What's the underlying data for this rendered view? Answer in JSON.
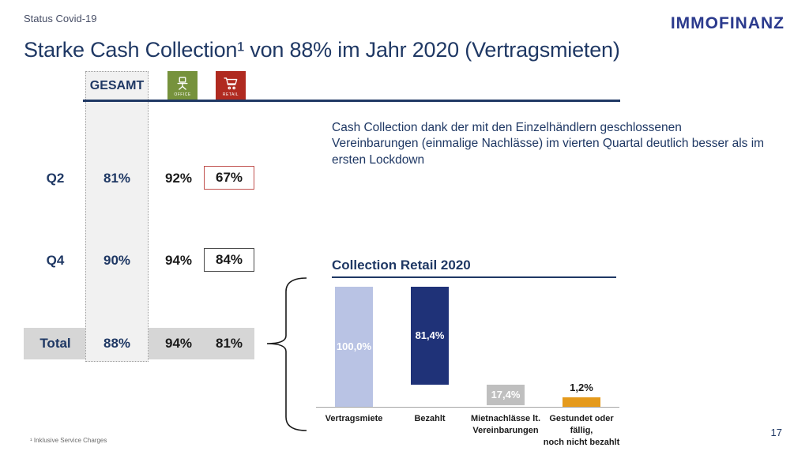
{
  "header": {
    "kicker": "Status Covid-19",
    "title": "Starke Cash Collection¹ von 88% im Jahr 2020 (Vertragsmieten)",
    "logo": "IMMOFINANZ"
  },
  "table": {
    "gesamt_header": "GESAMT",
    "office_caption": "OFFICE",
    "retail_caption": "RETAIL",
    "rows": [
      {
        "label": "Q2",
        "gesamt": "81%",
        "office": "92%",
        "retail": "67%"
      },
      {
        "label": "Q4",
        "gesamt": "90%",
        "office": "94%",
        "retail": "84%"
      },
      {
        "label": "Total",
        "gesamt": "88%",
        "office": "94%",
        "retail": "81%"
      }
    ]
  },
  "callout": "Cash Collection dank der mit den Einzelhändlern geschlossenen Vereinbarungen (einmalige Nachlässe) im vierten Quartal deutlich besser als im ersten Lockdown",
  "chart_data": {
    "type": "bar",
    "subtype": "waterfall",
    "title": "Collection Retail 2020",
    "categories": [
      "Vertragsmiete",
      "Bezahlt",
      "Mietnachlässe lt. Vereinbarungen",
      "Gestundet oder fällig, noch nicht bezahlt"
    ],
    "category_lines": [
      [
        "Vertragsmiete"
      ],
      [
        "Bezahlt"
      ],
      [
        "Mietnachlässe lt.",
        "Vereinbarungen"
      ],
      [
        "Gestundet oder fällig,",
        "noch nicht bezahlt"
      ]
    ],
    "values": [
      100.0,
      81.4,
      17.4,
      1.2
    ],
    "value_labels": [
      "100,0%",
      "81,4%",
      "17,4%",
      "1,2%"
    ],
    "bar_bases": [
      0,
      18.6,
      1.2,
      0
    ],
    "bar_colors": [
      "#b9c3e4",
      "#1f3278",
      "#bfbfbf",
      "#e59a1c"
    ],
    "label_inside": [
      true,
      true,
      true,
      false
    ],
    "ylim": [
      0,
      100
    ],
    "grid": false,
    "legend": false
  },
  "footer": {
    "footnote": "¹ Inklusive Service Charges",
    "page_number": "17"
  },
  "colors": {
    "navy": "#1f3864",
    "logo_navy": "#2b3a8d",
    "office_green": "#76923c",
    "retail_red": "#b02a20",
    "band_gray": "#d6d6d6",
    "column_gray": "#f1f1f1",
    "red_box_border": "#c0504d",
    "orange": "#e59a1c"
  }
}
